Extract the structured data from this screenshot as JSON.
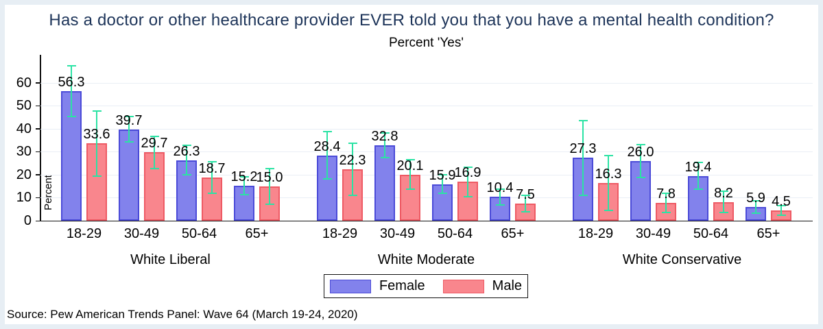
{
  "source": "Source: Pew American Trends Panel: Wave 64 (March 19-24, 2020)",
  "colors": {
    "female_fill": "#8282ec",
    "female_border": "#4a4ad8",
    "male_fill": "#f9868d",
    "male_border": "#ee5a64",
    "ci_bar": "#2be3a4",
    "title_text": "#1d3459",
    "gridline": "#e9eef5",
    "outer_frame": "#e7eef4",
    "axis": "#111111"
  },
  "chart_data": {
    "type": "bar",
    "title": "Has a doctor or other healthcare provider EVER told you that you have a mental health condition?",
    "subtitle": "Percent 'Yes'",
    "ylabel": "Percent",
    "xlabel": "",
    "ylim": [
      0,
      70
    ],
    "yticks": [
      0,
      10,
      20,
      30,
      40,
      50,
      60
    ],
    "grid": true,
    "legend_position": "bottom",
    "group_labels": [
      "White Liberal",
      "White Moderate",
      "White Conservative"
    ],
    "categories": [
      "18-29",
      "30-49",
      "50-64",
      "65+"
    ],
    "series": [
      {
        "name": "Female",
        "values": [
          [
            56.3,
            39.7,
            26.3,
            15.2
          ],
          [
            28.4,
            32.8,
            15.9,
            10.4
          ],
          [
            27.3,
            26.0,
            19.4,
            5.9
          ]
        ],
        "ci": [
          [
            [
              44.9,
              67.7
            ],
            [
              33.9,
              45.5
            ],
            [
              19.6,
              33.0
            ],
            [
              10.9,
              19.5
            ]
          ],
          [
            [
              17.8,
              39.0
            ],
            [
              27.1,
              38.5
            ],
            [
              11.5,
              20.3
            ],
            [
              6.7,
              14.1
            ]
          ],
          [
            [
              10.8,
              43.8
            ],
            [
              18.6,
              33.4
            ],
            [
              13.3,
              25.5
            ],
            [
              2.9,
              8.9
            ]
          ]
        ]
      },
      {
        "name": "Male",
        "values": [
          [
            33.6,
            29.7,
            18.7,
            15.0
          ],
          [
            22.3,
            20.1,
            16.9,
            7.5
          ],
          [
            16.3,
            7.8,
            8.2,
            4.5
          ]
        ],
        "ci": [
          [
            [
              19.2,
              48.0
            ],
            [
              22.4,
              37.0
            ],
            [
              11.5,
              25.9
            ],
            [
              7.0,
              23.0
            ]
          ],
          [
            [
              10.6,
              34.0
            ],
            [
              13.5,
              26.7
            ],
            [
              10.1,
              23.7
            ],
            [
              3.6,
              11.4
            ]
          ],
          [
            [
              4.1,
              28.5
            ],
            [
              3.4,
              12.2
            ],
            [
              3.2,
              13.2
            ],
            [
              2.0,
              7.0
            ]
          ]
        ]
      }
    ],
    "value_labels_shown": true,
    "error_bars_shown": true
  }
}
